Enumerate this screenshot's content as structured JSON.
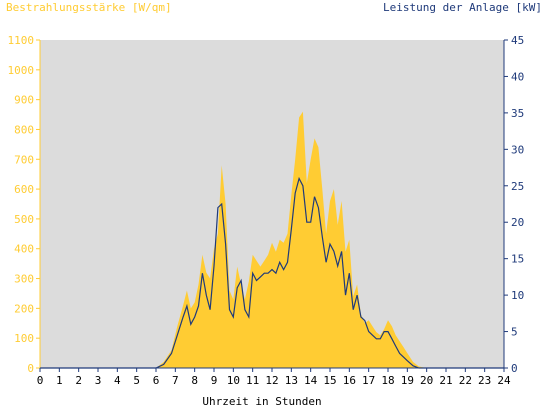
{
  "chart_data": {
    "type": "area",
    "left_axis": {
      "label": "Bestrahlungsstärke [W/qm]",
      "ylim": [
        0,
        1100
      ],
      "ticks": [
        0,
        100,
        200,
        300,
        400,
        500,
        600,
        700,
        800,
        900,
        1000,
        1100
      ],
      "color": "#ffcc33"
    },
    "right_axis": {
      "label": "Leistung der Anlage [kW]",
      "ylim": [
        0,
        45
      ],
      "ticks": [
        0,
        5,
        10,
        15,
        20,
        25,
        30,
        35,
        40,
        45
      ],
      "color": "#1f3a7a"
    },
    "x_axis": {
      "label": "Uhrzeit in Stunden",
      "xlim": [
        0,
        24
      ],
      "ticks": [
        0,
        1,
        2,
        3,
        4,
        5,
        6,
        7,
        8,
        9,
        10,
        11,
        12,
        13,
        14,
        15,
        16,
        17,
        18,
        19,
        20,
        21,
        22,
        23,
        24
      ]
    },
    "background": "#dcdcdc",
    "series": [
      {
        "name": "Bestrahlungsstärke",
        "axis": "left",
        "color": "#ffcc33",
        "x": [
          0,
          6,
          6.4,
          6.8,
          7.1,
          7.4,
          7.6,
          7.8,
          8.0,
          8.2,
          8.4,
          8.6,
          8.8,
          9.0,
          9.2,
          9.4,
          9.6,
          9.8,
          10.0,
          10.2,
          10.4,
          10.6,
          10.8,
          11.0,
          11.2,
          11.4,
          11.6,
          11.8,
          12.0,
          12.2,
          12.4,
          12.6,
          12.8,
          13.0,
          13.2,
          13.4,
          13.6,
          13.8,
          14.0,
          14.2,
          14.4,
          14.6,
          14.8,
          15.0,
          15.2,
          15.4,
          15.6,
          15.8,
          16.0,
          16.2,
          16.4,
          16.6,
          16.8,
          17.0,
          17.2,
          17.4,
          17.6,
          17.8,
          18.0,
          18.2,
          18.4,
          18.6,
          18.8,
          19.0,
          19.3,
          19.6,
          20,
          24
        ],
        "values": [
          0,
          0,
          20,
          60,
          140,
          210,
          260,
          200,
          220,
          280,
          380,
          320,
          300,
          400,
          450,
          680,
          550,
          260,
          230,
          340,
          280,
          230,
          290,
          380,
          360,
          340,
          360,
          380,
          420,
          390,
          430,
          420,
          450,
          580,
          700,
          840,
          860,
          620,
          700,
          770,
          740,
          600,
          450,
          560,
          600,
          480,
          560,
          390,
          430,
          240,
          280,
          180,
          150,
          160,
          140,
          120,
          110,
          130,
          160,
          140,
          110,
          90,
          70,
          50,
          20,
          5,
          0,
          0
        ]
      },
      {
        "name": "Leistung",
        "axis": "right",
        "color": "#1f3a7a",
        "x": [
          0,
          6,
          6.4,
          6.8,
          7.1,
          7.4,
          7.6,
          7.8,
          8.0,
          8.2,
          8.4,
          8.6,
          8.8,
          9.0,
          9.2,
          9.4,
          9.6,
          9.8,
          10.0,
          10.2,
          10.4,
          10.6,
          10.8,
          11.0,
          11.2,
          11.4,
          11.6,
          11.8,
          12.0,
          12.2,
          12.4,
          12.6,
          12.8,
          13.0,
          13.2,
          13.4,
          13.6,
          13.8,
          14.0,
          14.2,
          14.4,
          14.6,
          14.8,
          15.0,
          15.2,
          15.4,
          15.6,
          15.8,
          16.0,
          16.2,
          16.4,
          16.6,
          16.8,
          17.0,
          17.2,
          17.4,
          17.6,
          17.8,
          18.0,
          18.2,
          18.4,
          18.6,
          18.8,
          19.0,
          19.3,
          19.6,
          20,
          24
        ],
        "values": [
          0,
          0,
          0.5,
          2,
          4.5,
          7,
          8.5,
          6,
          7,
          8.5,
          13,
          10,
          8,
          14,
          22,
          22.5,
          17,
          8,
          7,
          11,
          12,
          8,
          7,
          13,
          12,
          12.5,
          13,
          13,
          13.5,
          13,
          14.5,
          13.5,
          14.5,
          19,
          24,
          26,
          25,
          20,
          20,
          23.5,
          22,
          18,
          14.5,
          17,
          16,
          14,
          16,
          10,
          13,
          8,
          10,
          7,
          6.5,
          5,
          4.5,
          4,
          4,
          5,
          5,
          4,
          3,
          2,
          1.5,
          1,
          0.3,
          0,
          0,
          0
        ]
      }
    ]
  }
}
